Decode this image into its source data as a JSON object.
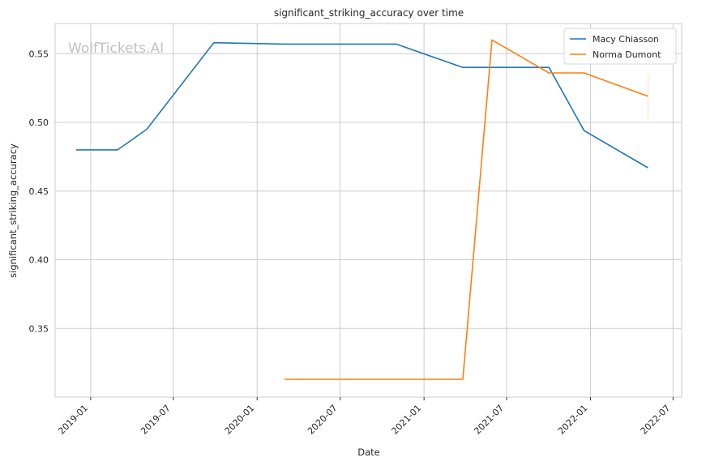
{
  "chart_data": {
    "type": "line",
    "title": "significant_striking_accuracy over time",
    "xlabel": "Date",
    "ylabel": "significant_striking_accuracy",
    "watermark": "WolfTickets.AI",
    "x_ticks": [
      "2019-01",
      "2019-07",
      "2020-01",
      "2020-07",
      "2021-01",
      "2021-07",
      "2022-01",
      "2022-07"
    ],
    "y_ticks": [
      0.35,
      0.4,
      0.45,
      0.5,
      0.55
    ],
    "y_tick_labels": [
      "0.35",
      "0.40",
      "0.45",
      "0.50",
      "0.55"
    ],
    "xlim": [
      "2018-10-15",
      "2022-07-20"
    ],
    "ylim": [
      0.3,
      0.572
    ],
    "grid": true,
    "legend_position": "top-right",
    "series": [
      {
        "name": "Macy Chiasson",
        "color": "#1f77b4",
        "points": [
          {
            "x": "2018-11-30",
            "y": 0.48
          },
          {
            "x": "2019-03-01",
            "y": 0.48
          },
          {
            "x": "2019-05-04",
            "y": 0.495
          },
          {
            "x": "2019-09-28",
            "y": 0.558
          },
          {
            "x": "2020-03-01",
            "y": 0.557
          },
          {
            "x": "2020-11-01",
            "y": 0.557
          },
          {
            "x": "2021-03-27",
            "y": 0.54
          },
          {
            "x": "2021-10-02",
            "y": 0.54
          },
          {
            "x": "2021-12-18",
            "y": 0.494
          },
          {
            "x": "2022-05-07",
            "y": 0.467
          }
        ]
      },
      {
        "name": "Norma Dumont",
        "color": "#ff7f0e",
        "points": [
          {
            "x": "2020-03-01",
            "y": 0.313
          },
          {
            "x": "2021-03-27",
            "y": 0.313
          },
          {
            "x": "2021-05-30",
            "y": 0.56
          },
          {
            "x": "2021-10-02",
            "y": 0.536
          },
          {
            "x": "2021-12-18",
            "y": 0.536
          },
          {
            "x": "2022-05-07",
            "y": 0.519
          }
        ],
        "error_bar": {
          "x": "2022-05-07",
          "low": 0.503,
          "high": 0.535
        }
      }
    ]
  }
}
